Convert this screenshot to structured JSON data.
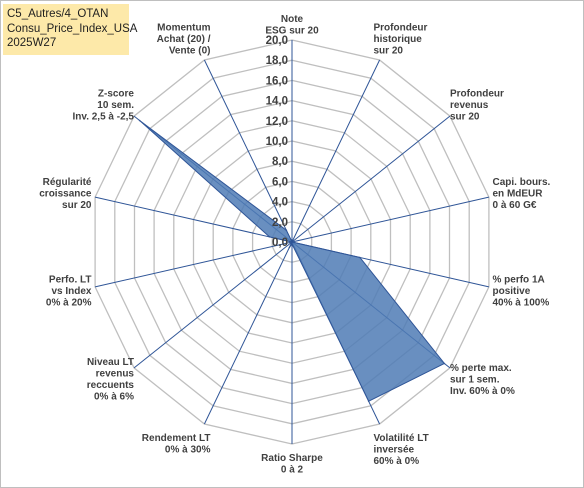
{
  "title_lines": [
    "C5_Autres/4_OTAN",
    "Consu_Price_Index_USA",
    "2025W27"
  ],
  "colors": {
    "fill": "#4f7bb5",
    "stroke": "#2f5597",
    "grid": "#bfbfbf",
    "spoke": "#2f5597",
    "title_bg": "#fde9a9"
  },
  "chart_data": {
    "type": "radar",
    "rmin": 0,
    "rmax": 20,
    "tick_step": 2,
    "tick_labels": [
      "0,0",
      "2,0",
      "4,0",
      "6,0",
      "8,0",
      "10,0",
      "12,0",
      "14,0",
      "16,0",
      "18,0",
      "20,0"
    ],
    "grid": true,
    "legend": "none",
    "axes": [
      {
        "label": [
          "Note",
          "ESG sur 20"
        ],
        "value": 0
      },
      {
        "label": [
          "Profondeur",
          "historique",
          "sur 20"
        ],
        "value": 0
      },
      {
        "label": [
          "Profondeur",
          "revenus",
          "sur 20"
        ],
        "value": 0
      },
      {
        "label": [
          "Capi. bours.",
          "en MdEUR",
          "0 à 60 G€"
        ],
        "value": 0
      },
      {
        "label": [
          "% perfo 1A",
          "positive",
          "40% à 100%"
        ],
        "value": 6.9
      },
      {
        "label": [
          "% perte max.",
          "sur 1 sem.",
          "Inv. 60% à 0%"
        ],
        "value": 19.3
      },
      {
        "label": [
          "Volatilité LT",
          "inversée",
          "60% à 0%"
        ],
        "value": 17.5
      },
      {
        "label": [
          "Ratio Sharpe",
          "0 à 2"
        ],
        "value": 0.2
      },
      {
        "label": [
          "Rendement LT",
          "0% à 30%"
        ],
        "value": 0.6
      },
      {
        "label": [
          "Niveau LT",
          "revenus",
          "reccuents",
          "0% à 6%"
        ],
        "value": 0
      },
      {
        "label": [
          "Perfo. LT",
          "vs Index",
          "0% à 20%"
        ],
        "value": 0
      },
      {
        "label": [
          "Régularité",
          "croissance",
          "sur 20"
        ],
        "value": 2.3
      },
      {
        "label": [
          "Z-score",
          "10 sem.",
          "Inv. 2,5 à -2,5"
        ],
        "value": 19.3
      },
      {
        "label": [
          "Momentum",
          "Achat (20) /",
          "Vente (0)"
        ],
        "value": 1.3
      }
    ]
  }
}
